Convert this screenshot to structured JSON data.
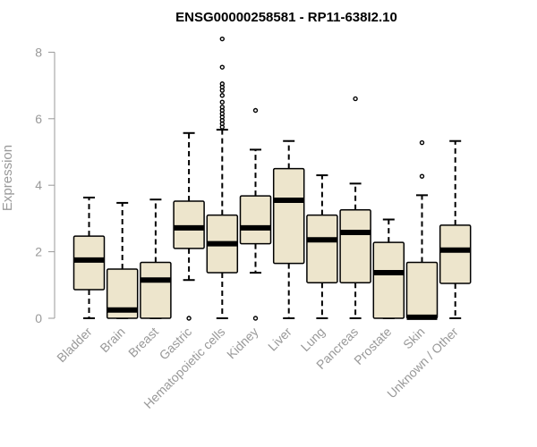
{
  "chart_data": {
    "type": "box",
    "title": "ENSG00000258581 - RP11-638I2.10",
    "ylabel": "Expression",
    "ylim": [
      0,
      8.5
    ],
    "yticks": [
      0,
      2,
      4,
      6,
      8
    ],
    "box_fill": "#ede5cc",
    "box_stroke": "#000000",
    "axis_color": "#999999",
    "categories": [
      "Bladder",
      "Brain",
      "Breast",
      "Gastric",
      "Hematopoietic cells",
      "Kidney",
      "Liver",
      "Lung",
      "Pancreas",
      "Prostate",
      "Skin",
      "Unknown / Other"
    ],
    "boxes": [
      {
        "whisker_low": 0.0,
        "q1": 0.86,
        "median": 1.75,
        "q3": 2.47,
        "whisker_high": 3.63,
        "outliers": []
      },
      {
        "whisker_low": 0.0,
        "q1": 0.0,
        "median": 0.25,
        "q3": 1.48,
        "whisker_high": 3.47,
        "outliers": []
      },
      {
        "whisker_low": 0.0,
        "q1": 0.0,
        "median": 1.15,
        "q3": 1.68,
        "whisker_high": 3.57,
        "outliers": []
      },
      {
        "whisker_low": 1.15,
        "q1": 2.1,
        "median": 2.72,
        "q3": 3.52,
        "whisker_high": 5.57,
        "outliers": [
          0.0
        ]
      },
      {
        "whisker_low": 0.0,
        "q1": 1.37,
        "median": 2.24,
        "q3": 3.1,
        "whisker_high": 5.67,
        "outliers": [
          5.75,
          5.85,
          5.95,
          6.05,
          6.15,
          6.25,
          6.35,
          6.5,
          6.7,
          6.85,
          6.95,
          7.05,
          7.55,
          8.4
        ]
      },
      {
        "whisker_low": 1.37,
        "q1": 2.24,
        "median": 2.72,
        "q3": 3.68,
        "whisker_high": 5.07,
        "outliers": [
          6.25,
          0.0
        ]
      },
      {
        "whisker_low": 0.0,
        "q1": 1.65,
        "median": 3.55,
        "q3": 4.5,
        "whisker_high": 5.33,
        "outliers": []
      },
      {
        "whisker_low": 0.0,
        "q1": 1.07,
        "median": 2.36,
        "q3": 3.1,
        "whisker_high": 4.3,
        "outliers": []
      },
      {
        "whisker_low": 0.0,
        "q1": 1.07,
        "median": 2.58,
        "q3": 3.26,
        "whisker_high": 4.05,
        "outliers": [
          6.6
        ]
      },
      {
        "whisker_low": 0.0,
        "q1": 0.0,
        "median": 1.37,
        "q3": 2.28,
        "whisker_high": 2.97,
        "outliers": []
      },
      {
        "whisker_low": 0.0,
        "q1": 0.0,
        "median": 0.03,
        "q3": 1.68,
        "whisker_high": 3.7,
        "outliers": [
          4.27,
          5.28
        ]
      },
      {
        "whisker_low": 0.0,
        "q1": 1.05,
        "median": 2.05,
        "q3": 2.8,
        "whisker_high": 5.33,
        "outliers": []
      }
    ]
  }
}
